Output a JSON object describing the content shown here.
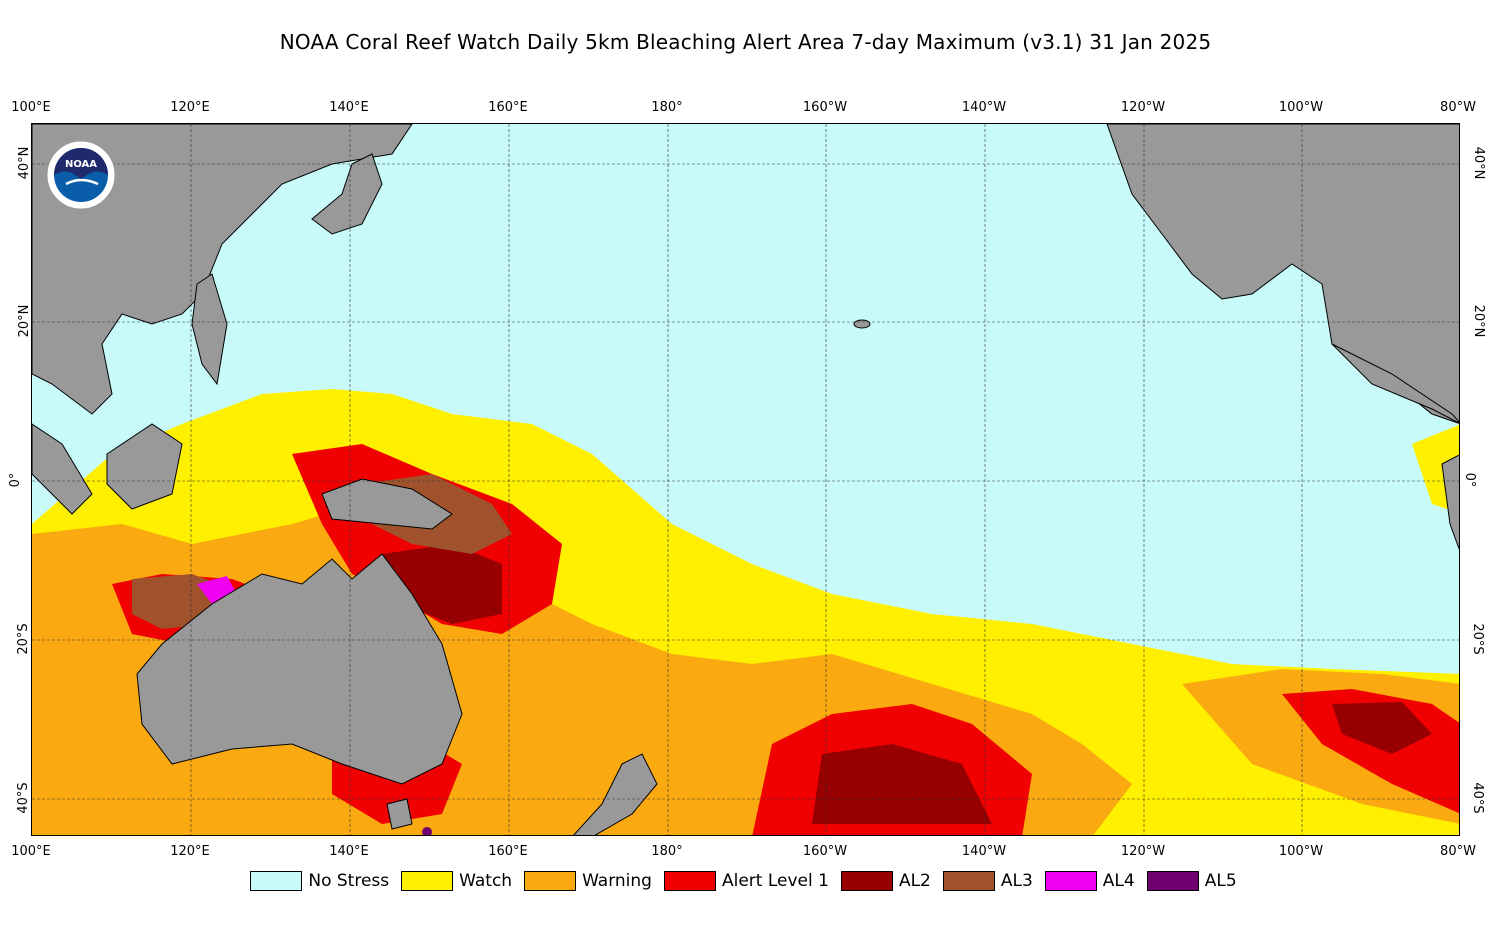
{
  "title": "NOAA Coral Reef Watch Daily 5km Bleaching Alert Area 7-day Maximum  (v3.1)   31 Jan 2025",
  "longitude_labels": [
    "100°E",
    "120°E",
    "140°E",
    "160°E",
    "180°",
    "160°W",
    "140°W",
    "120°W",
    "100°W",
    "80°W"
  ],
  "latitude_labels": [
    "40°N",
    "20°N",
    "0°",
    "20°S",
    "40°S"
  ],
  "logo": {
    "icon": "noaa-logo-icon",
    "text": "NOAA"
  },
  "legend": [
    {
      "label": "No Stress",
      "color": "#c8fafa"
    },
    {
      "label": "Watch",
      "color": "#fff000"
    },
    {
      "label": "Warning",
      "color": "#faaa10"
    },
    {
      "label": "Alert Level 1",
      "color": "#f00000"
    },
    {
      "label": "AL2",
      "color": "#960000"
    },
    {
      "label": "AL3",
      "color": "#a0522d"
    },
    {
      "label": "AL4",
      "color": "#f000f0"
    },
    {
      "label": "AL5",
      "color": "#700070"
    }
  ],
  "colors": {
    "land": "#999999",
    "ocean_no_stress": "#c8fafa"
  }
}
